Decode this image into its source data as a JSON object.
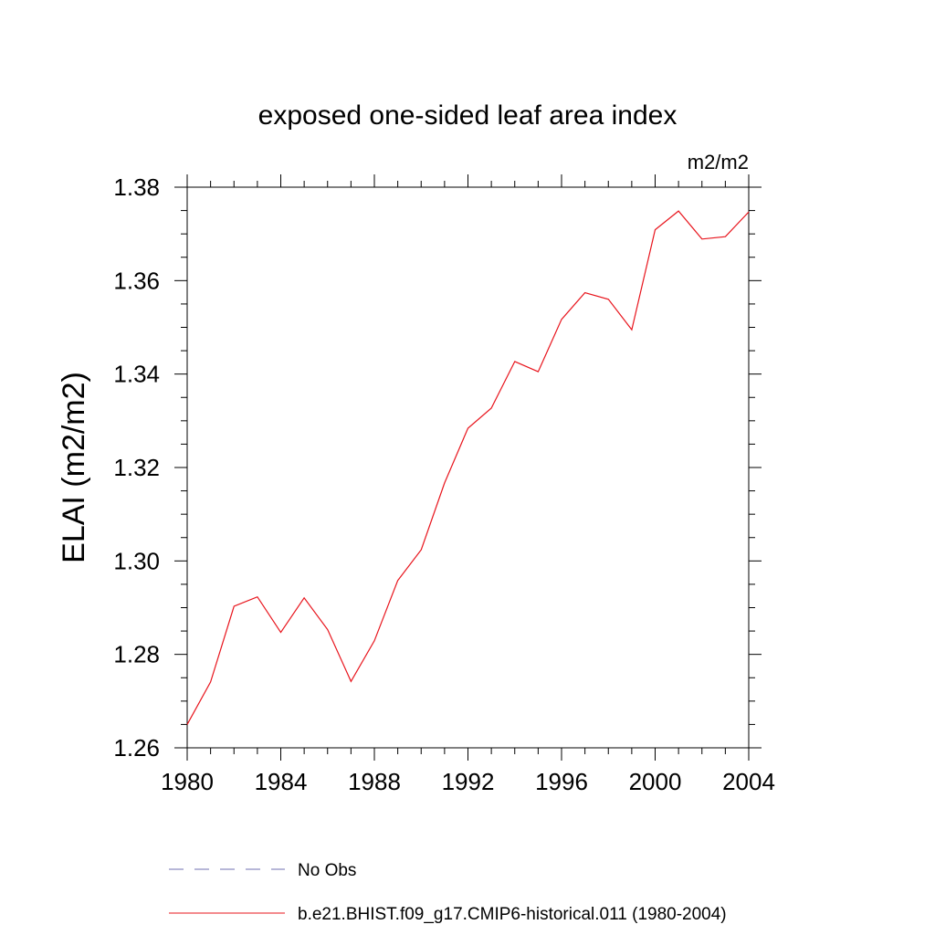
{
  "chart_data": {
    "type": "line",
    "title": "exposed one-sided leaf area index",
    "units_label": "m2/m2",
    "ylabel": "ELAI  (m2/m2)",
    "xlabel": "",
    "xlim": [
      1980,
      2004
    ],
    "ylim": [
      1.26,
      1.38
    ],
    "x_ticks": [
      1980,
      1984,
      1988,
      1992,
      1996,
      2000,
      2004
    ],
    "y_ticks": [
      "1.26",
      "1.28",
      "1.30",
      "1.32",
      "1.34",
      "1.36",
      "1.38"
    ],
    "grid": false,
    "legend_position": "bottom",
    "series": [
      {
        "name": "b.e21.BHIST.f09_g17.CMIP6-historical.011 (1980-2004)",
        "color": "#e8141c",
        "style": "solid",
        "x": [
          1980,
          1981,
          1982,
          1983,
          1984,
          1985,
          1986,
          1987,
          1988,
          1989,
          1990,
          1991,
          1992,
          1993,
          1994,
          1995,
          1996,
          1997,
          1998,
          1999,
          2000,
          2001,
          2002,
          2003,
          2004
        ],
        "values": [
          1.265,
          1.2741,
          1.2903,
          1.2923,
          1.2847,
          1.2921,
          1.2853,
          1.2742,
          1.2829,
          1.2958,
          1.3024,
          1.3167,
          1.3284,
          1.3327,
          1.3427,
          1.3405,
          1.3517,
          1.3574,
          1.356,
          1.3495,
          1.3709,
          1.3749,
          1.3689,
          1.3694,
          1.3747
        ]
      }
    ],
    "legend": [
      {
        "name": "No Obs",
        "color": "#6f6fb0",
        "style": "dashed"
      },
      {
        "name": "b.e21.BHIST.f09_g17.CMIP6-historical.011 (1980-2004)",
        "color": "#e8141c",
        "style": "solid"
      }
    ]
  }
}
